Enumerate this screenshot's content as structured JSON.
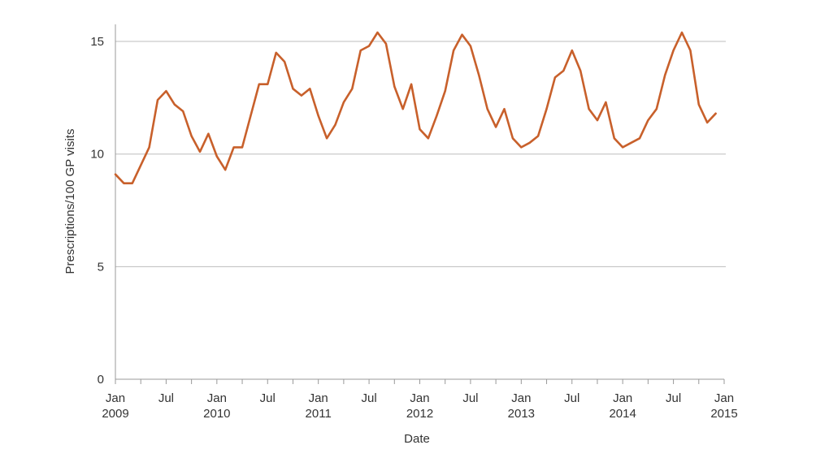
{
  "chart_data": {
    "type": "line",
    "title": "",
    "xlabel": "Date",
    "ylabel": "Prescriptions/100 GP visits",
    "ylim": [
      0,
      15.5
    ],
    "yticks": [
      "0",
      "5",
      "10",
      "15"
    ],
    "grid": "horizontal",
    "x_ticks": [
      {
        "month": "Jan",
        "year": "2009"
      },
      {
        "month": "Jul",
        "year": ""
      },
      {
        "month": "Jan",
        "year": "2010"
      },
      {
        "month": "Jul",
        "year": ""
      },
      {
        "month": "Jan",
        "year": "2011"
      },
      {
        "month": "Jul",
        "year": ""
      },
      {
        "month": "Jan",
        "year": "2012"
      },
      {
        "month": "Jul",
        "year": ""
      },
      {
        "month": "Jan",
        "year": "2013"
      },
      {
        "month": "Jul",
        "year": ""
      },
      {
        "month": "Jan",
        "year": "2014"
      },
      {
        "month": "Jul",
        "year": ""
      },
      {
        "month": "Jan",
        "year": "2015"
      }
    ],
    "x_start": "2009-01",
    "x_end": "2015-01",
    "series": [
      {
        "color": "#c8602b",
        "x": [
          "2009-01",
          "2009-02",
          "2009-03",
          "2009-04",
          "2009-05",
          "2009-06",
          "2009-07",
          "2009-08",
          "2009-09",
          "2009-10",
          "2009-11",
          "2009-12",
          "2010-01",
          "2010-02",
          "2010-03",
          "2010-04",
          "2010-05",
          "2010-06",
          "2010-07",
          "2010-08",
          "2010-09",
          "2010-10",
          "2010-11",
          "2010-12",
          "2011-01",
          "2011-02",
          "2011-03",
          "2011-04",
          "2011-05",
          "2011-06",
          "2011-07",
          "2011-08",
          "2011-09",
          "2011-10",
          "2011-11",
          "2011-12",
          "2012-01",
          "2012-02",
          "2012-03",
          "2012-04",
          "2012-05",
          "2012-06",
          "2012-07",
          "2012-08",
          "2012-09",
          "2012-10",
          "2012-11",
          "2012-12",
          "2013-01",
          "2013-02",
          "2013-03",
          "2013-04",
          "2013-05",
          "2013-06",
          "2013-07",
          "2013-08",
          "2013-09",
          "2013-10",
          "2013-11",
          "2013-12",
          "2014-01",
          "2014-02",
          "2014-03",
          "2014-04",
          "2014-05",
          "2014-06",
          "2014-07",
          "2014-08",
          "2014-09",
          "2014-10",
          "2014-11",
          "2014-12"
        ],
        "values": [
          9.1,
          8.7,
          8.7,
          9.5,
          10.3,
          12.4,
          12.8,
          12.2,
          11.9,
          10.8,
          10.1,
          10.9,
          9.9,
          9.3,
          10.3,
          10.3,
          11.7,
          13.1,
          13.1,
          14.5,
          14.1,
          12.9,
          12.6,
          12.9,
          11.7,
          10.7,
          11.3,
          12.3,
          12.9,
          14.6,
          14.8,
          15.4,
          14.9,
          13.0,
          12.0,
          13.1,
          11.1,
          10.7,
          11.7,
          12.8,
          14.6,
          15.3,
          14.8,
          13.5,
          12.0,
          11.2,
          12.0,
          10.7,
          10.3,
          10.5,
          10.8,
          12.0,
          13.4,
          13.7,
          14.6,
          13.7,
          12.0,
          11.5,
          12.3,
          10.7,
          10.3,
          10.5,
          10.7,
          11.5,
          12.0,
          13.5,
          14.6,
          15.4,
          14.6,
          12.2,
          11.4,
          11.8
        ]
      }
    ]
  }
}
